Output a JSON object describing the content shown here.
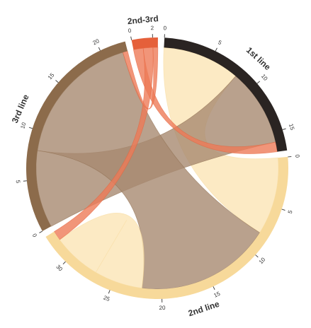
{
  "chart_data": {
    "type": "chord",
    "segments": [
      {
        "name": "1st line",
        "color": "#2a2422",
        "chord_color": "#6b5a4e",
        "ticks": [
          0,
          5,
          10,
          15
        ]
      },
      {
        "name": "2nd line",
        "color": "#f7d99a",
        "chord_color": "#fbe5b5",
        "ticks": [
          0,
          5,
          10,
          15,
          20,
          25,
          30
        ]
      },
      {
        "name": "3rd line",
        "color": "#8c6b4b",
        "chord_color": "#a88a70",
        "ticks": [
          0,
          5,
          10,
          15,
          20
        ]
      },
      {
        "name": "2nd-3rd",
        "color": "#e5603a",
        "chord_color": "#ee7a58",
        "ticks": [
          0,
          2
        ]
      }
    ],
    "chords": [
      {
        "source": "2nd line",
        "target": "1st line",
        "value": 8
      },
      {
        "source": "3rd line",
        "target": "1st line",
        "value": 8
      },
      {
        "source": "2nd-3rd",
        "target": "1st line",
        "value": 1
      },
      {
        "source": "3rd line",
        "target": "2nd line",
        "value": 14
      },
      {
        "source": "2nd line",
        "target": "2nd line",
        "value": 5
      },
      {
        "source": "2nd-3rd",
        "target": "2nd line",
        "value": 1
      },
      {
        "source": "2nd-3rd",
        "target": "3rd line",
        "value": 0.5
      }
    ]
  }
}
